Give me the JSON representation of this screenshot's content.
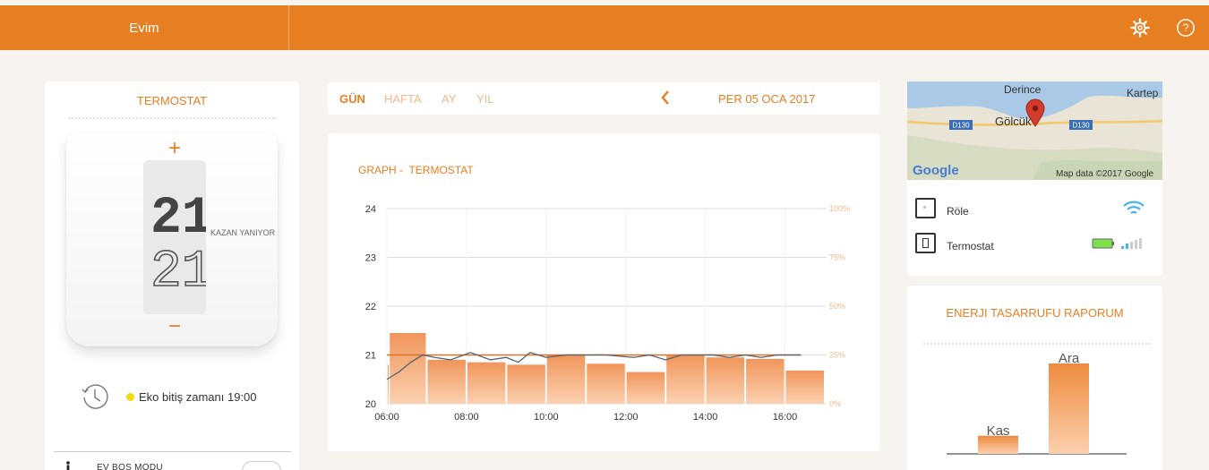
{
  "header": {
    "home_label": "Evim",
    "icons": [
      "gear-icon",
      "help-icon"
    ],
    "accent": "#e67e22"
  },
  "thermostat": {
    "title": "TERMOSTAT",
    "set_temp": "21°",
    "current_temp": "21°",
    "plus": "+",
    "minus": "−",
    "status": "KAZAN YANIYOR",
    "eco_text": "Eko bitiş zamanı 19:00",
    "eco_dot_color": "#f1dd0e",
    "mode_label": "EV BOŞ MODU",
    "mode_enabled": false
  },
  "tabs": {
    "items": [
      "GÜN",
      "HAFTA",
      "AY",
      "YIL"
    ],
    "active": "GÜN",
    "date": "PER 05 OCA 2017"
  },
  "graph": {
    "title": "GRAPH - ",
    "subtitle": "TERMOSTAT",
    "chart_data": {
      "type": "bar",
      "left_axis": {
        "ticks": [
          "24",
          "23",
          "22",
          "21",
          "20"
        ],
        "ylim": [
          20,
          24
        ]
      },
      "right_axis": {
        "ticks": [
          "100%",
          "75%",
          "50%",
          "25%",
          "0%"
        ],
        "ylim": [
          0,
          100
        ]
      },
      "x_ticks": [
        "06:00",
        "08:00",
        "10:00",
        "12:00",
        "14:00",
        "16:00"
      ],
      "xlim": [
        6.0,
        17.0
      ],
      "bars": [
        {
          "start": 6.0,
          "end": 6.05,
          "value": 20.8
        },
        {
          "start": 6.05,
          "end": 7.0,
          "value": 21.45
        },
        {
          "start": 7.0,
          "end": 8.0,
          "value": 20.9
        },
        {
          "start": 8.0,
          "end": 9.0,
          "value": 20.85
        },
        {
          "start": 9.0,
          "end": 10.0,
          "value": 20.8
        },
        {
          "start": 10.0,
          "end": 11.0,
          "value": 21.0
        },
        {
          "start": 11.0,
          "end": 12.0,
          "value": 20.82
        },
        {
          "start": 12.0,
          "end": 13.0,
          "value": 20.65
        },
        {
          "start": 13.0,
          "end": 14.0,
          "value": 21.0
        },
        {
          "start": 14.0,
          "end": 15.0,
          "value": 20.95
        },
        {
          "start": 15.0,
          "end": 16.0,
          "value": 20.92
        },
        {
          "start": 16.0,
          "end": 17.0,
          "value": 20.68
        }
      ],
      "setpoint": {
        "x": [
          6.0,
          16.4
        ],
        "y": [
          21.0,
          21.0
        ],
        "color": "#d9722a"
      },
      "measured": {
        "x": [
          6.0,
          6.3,
          6.6,
          6.9,
          7.2,
          7.6,
          8.1,
          8.6,
          9.0,
          9.3,
          9.6,
          10.0,
          10.5,
          11.0,
          11.5,
          12.2,
          12.6,
          13.0,
          13.4,
          13.8,
          14.2,
          14.6,
          15.0,
          15.4,
          15.8,
          16.4
        ],
        "y": [
          20.5,
          20.65,
          20.85,
          21.0,
          20.95,
          20.9,
          21.05,
          20.9,
          20.95,
          20.85,
          21.05,
          20.95,
          21.0,
          21.0,
          21.0,
          20.95,
          21.0,
          20.9,
          21.0,
          21.0,
          21.0,
          20.95,
          21.0,
          20.95,
          21.0,
          21.0
        ],
        "color": "#556270"
      },
      "bar_color": "#f0955a"
    }
  },
  "map": {
    "labels": [
      "Derince",
      "Kartep",
      "Gölcük",
      "D130",
      "D130"
    ],
    "logo": "Google",
    "attribution": "Map data ©2017 Google"
  },
  "devices": [
    {
      "name": "Röle",
      "status_icon": "wifi-icon"
    },
    {
      "name": "Termostat",
      "status_icon": "battery-icon"
    }
  ],
  "energy": {
    "title": "ENERJI TASARRUFU RAPORUM",
    "chart_data": {
      "type": "bar",
      "categories": [
        "Kas",
        "Ara"
      ],
      "values": [
        20,
        100
      ],
      "ylim": [
        0,
        100
      ]
    }
  }
}
